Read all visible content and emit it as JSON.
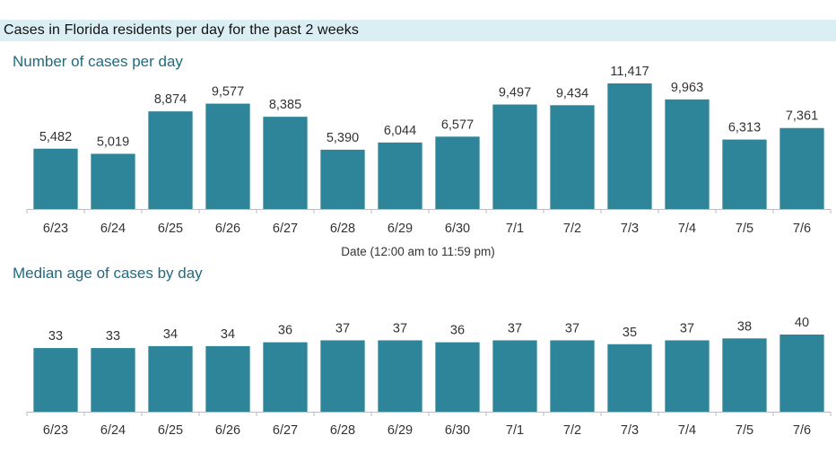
{
  "header": {
    "title": "Cases in Florida residents per day for the past 2 weeks"
  },
  "chart_data": [
    {
      "type": "bar",
      "title": "Number of cases per day",
      "xlabel": "Date (12:00 am to 11:59 pm)",
      "ylabel": "",
      "categories": [
        "6/23",
        "6/24",
        "6/25",
        "6/26",
        "6/27",
        "6/28",
        "6/29",
        "6/30",
        "7/1",
        "7/2",
        "7/3",
        "7/4",
        "7/5",
        "7/6"
      ],
      "values": [
        5482,
        5019,
        8874,
        9577,
        8385,
        5390,
        6044,
        6577,
        9497,
        9434,
        11417,
        9963,
        6313,
        7361
      ],
      "value_labels": [
        "5,482",
        "5,019",
        "8,874",
        "9,577",
        "8,385",
        "5,390",
        "6,044",
        "6,577",
        "9,497",
        "9,434",
        "11,417",
        "9,963",
        "6,313",
        "7,361"
      ],
      "ylim": [
        0,
        11417
      ],
      "grid": false,
      "color": "#2e8499"
    },
    {
      "type": "bar",
      "title": "Median age of cases by day",
      "xlabel": "",
      "ylabel": "",
      "categories": [
        "6/23",
        "6/24",
        "6/25",
        "6/26",
        "6/27",
        "6/28",
        "6/29",
        "6/30",
        "7/1",
        "7/2",
        "7/3",
        "7/4",
        "7/5",
        "7/6"
      ],
      "values": [
        33,
        33,
        34,
        34,
        36,
        37,
        37,
        36,
        37,
        37,
        35,
        37,
        38,
        40
      ],
      "value_labels": [
        "33",
        "33",
        "34",
        "34",
        "36",
        "37",
        "37",
        "36",
        "37",
        "37",
        "35",
        "37",
        "38",
        "40"
      ],
      "ylim": [
        0,
        40
      ],
      "grid": false,
      "color": "#2e8499"
    }
  ]
}
